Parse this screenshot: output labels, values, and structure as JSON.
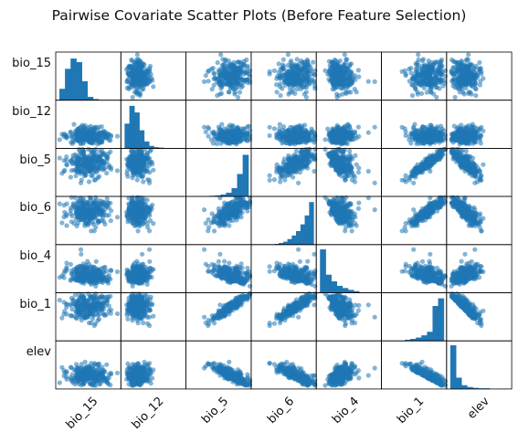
{
  "title": "Pairwise Covariate Scatter Plots (Before Feature Selection)",
  "colors": {
    "marker": "#1f77b4",
    "frame": "#000000",
    "background": "#ffffff"
  },
  "chart_data": {
    "type": "scatter",
    "matrix": "pairwise scatter matrix with histograms on the diagonal",
    "variables": [
      "bio_15",
      "bio_12",
      "bio_5",
      "bio_6",
      "bio_4",
      "bio_1",
      "elev"
    ],
    "row_labels": [
      "bio_15",
      "bio_12",
      "bio_5",
      "bio_6",
      "bio_4",
      "bio_1",
      "elev"
    ],
    "column_labels": [
      "bio_15",
      "bio_12",
      "bio_5",
      "bio_6",
      "bio_4",
      "bio_1",
      "elev"
    ],
    "tick_labels_shown": false,
    "diagonal": "histogram",
    "diagonal_histograms": {
      "bio_15": [
        0.25,
        0.7,
        0.93,
        0.85,
        0.42,
        0.07,
        0.02
      ],
      "bio_12": [
        0.55,
        0.95,
        0.8,
        0.4,
        0.15,
        0.05,
        0.02,
        0.01
      ],
      "bio_5": [
        0.01,
        0.02,
        0.04,
        0.08,
        0.18,
        0.5,
        0.93
      ],
      "bio_6": [
        0.01,
        0.03,
        0.06,
        0.12,
        0.2,
        0.3,
        0.45,
        0.65,
        0.95
      ],
      "bio_4": [
        0.97,
        0.4,
        0.25,
        0.15,
        0.1,
        0.06,
        0.03
      ],
      "bio_1": [
        0.02,
        0.04,
        0.07,
        0.12,
        0.2,
        0.78,
        0.95
      ],
      "elev": [
        0.98,
        0.25,
        0.08,
        0.04,
        0.02,
        0.01,
        0.01
      ]
    },
    "approx_pairwise_correlation": {
      "bio_5-bio_6": 0.85,
      "bio_5-bio_1": 0.95,
      "bio_6-bio_1": 0.95,
      "bio_6-bio_4": -0.8,
      "bio_1-bio_4": -0.5,
      "bio_5-bio_4": -0.3,
      "elev-bio_5": -0.7,
      "elev-bio_6": -0.6,
      "elev-bio_1": -0.7,
      "elev-bio_12": -0.4,
      "elev-bio_4": 0.1,
      "elev-bio_15": 0.0,
      "bio_12-bio_15": -0.5,
      "bio_12-bio_5": 0.2,
      "bio_12-bio_6": 0.3,
      "bio_12-bio_4": -0.5,
      "bio_12-bio_1": 0.1,
      "bio_15-bio_5": 0.0,
      "bio_15-bio_6": 0.0,
      "bio_15-bio_4": -0.1,
      "bio_15-bio_1": 0.0
    },
    "grid": false,
    "legend": "none"
  }
}
